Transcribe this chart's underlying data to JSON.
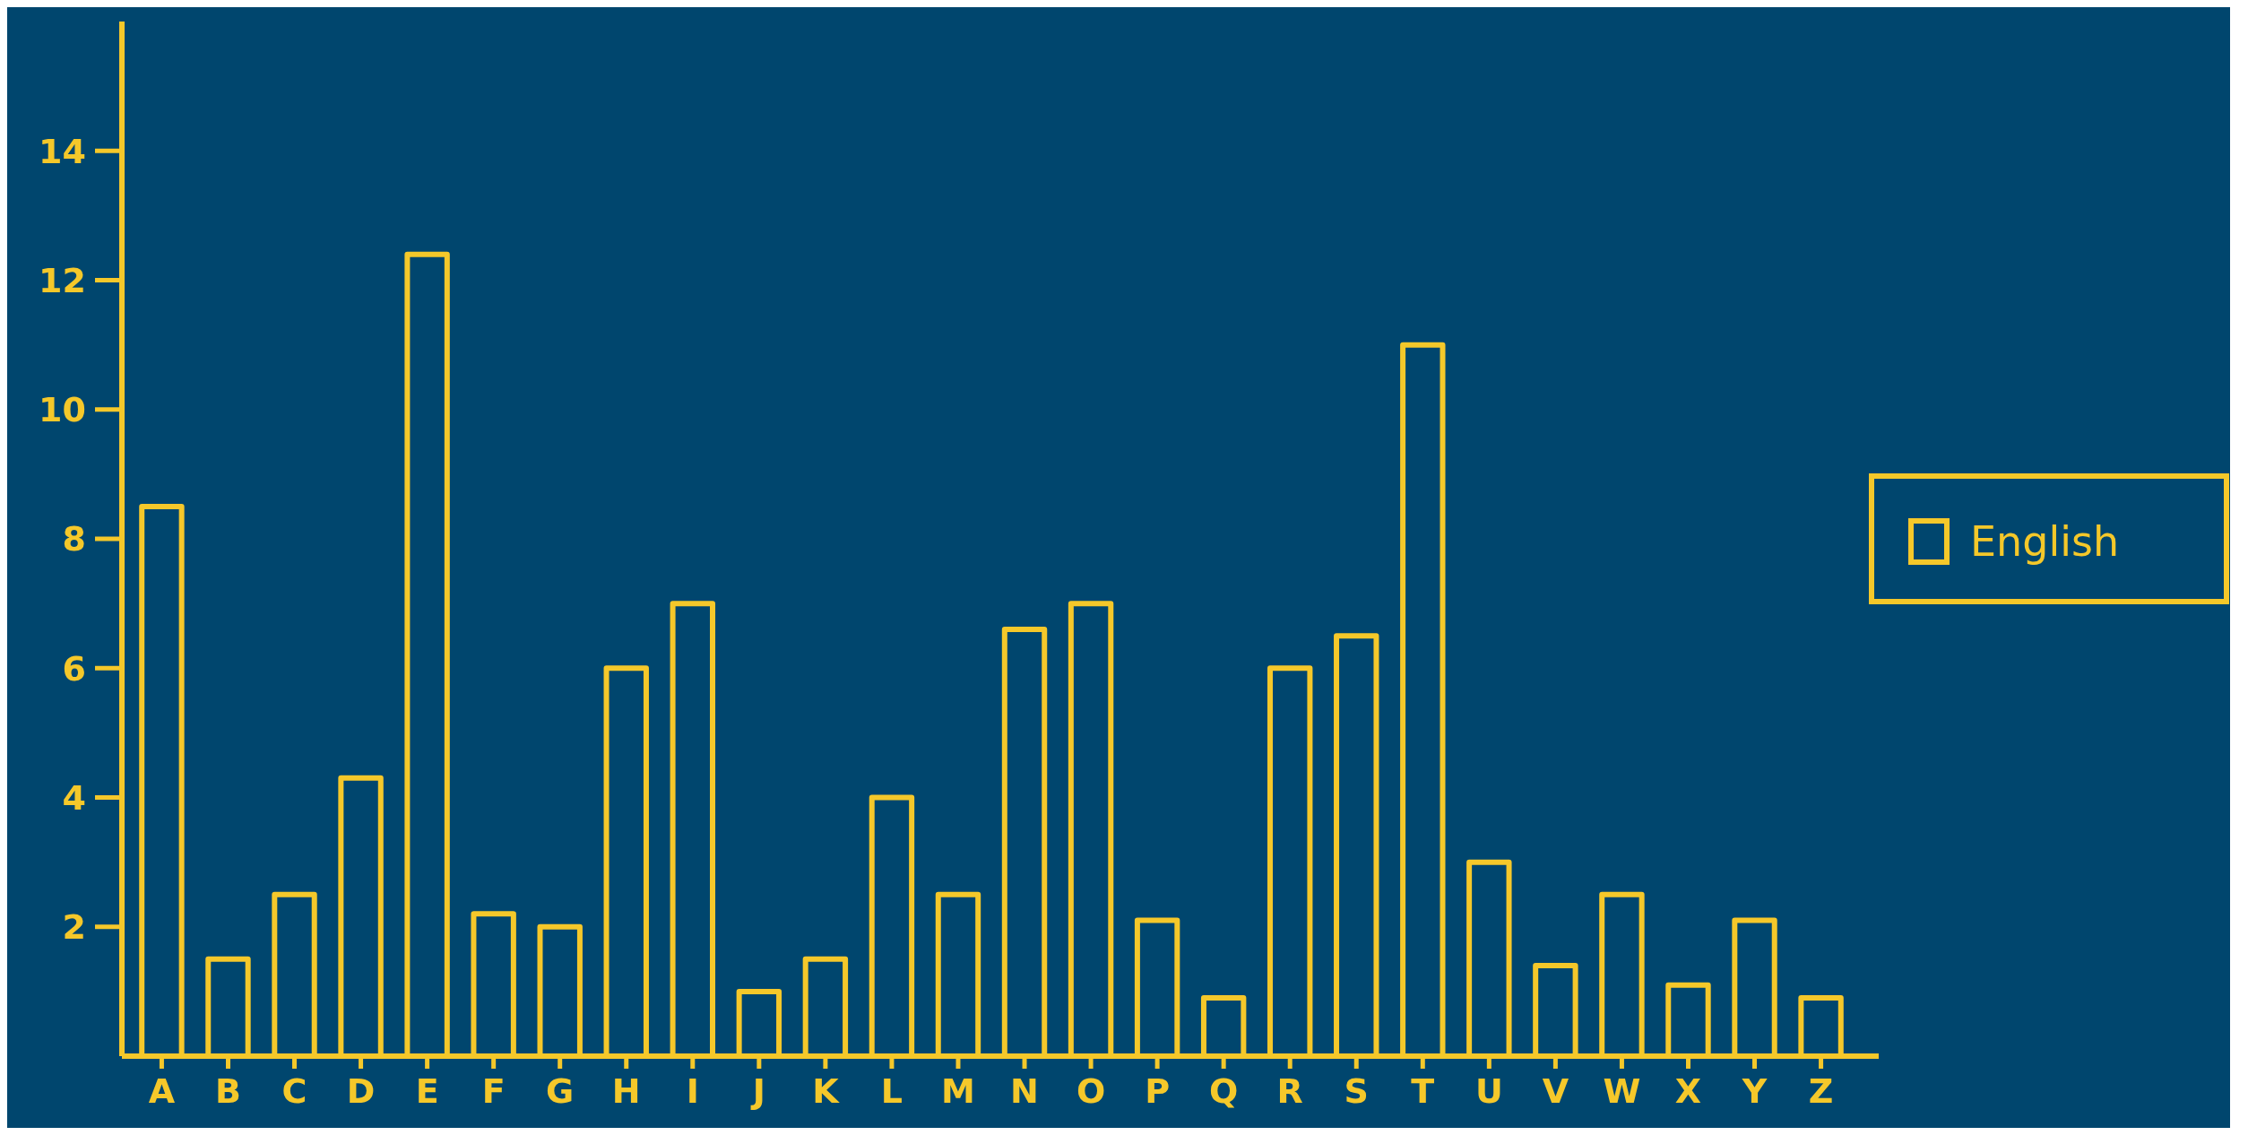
{
  "chart_data": {
    "type": "bar",
    "categories": [
      "A",
      "B",
      "C",
      "D",
      "E",
      "F",
      "G",
      "H",
      "I",
      "J",
      "K",
      "L",
      "M",
      "N",
      "O",
      "P",
      "Q",
      "R",
      "S",
      "T",
      "U",
      "V",
      "W",
      "X",
      "Y",
      "Z"
    ],
    "series": [
      {
        "name": "English",
        "color": "#f5c82a",
        "values": [
          8.5,
          1.5,
          2.5,
          4.3,
          12.4,
          2.2,
          2.0,
          6.0,
          7.0,
          1.0,
          1.5,
          4.0,
          2.5,
          6.6,
          7.0,
          2.1,
          0.9,
          6.0,
          6.5,
          11.0,
          3.0,
          1.4,
          2.5,
          1.1,
          2.1,
          0.9
        ]
      }
    ],
    "ylim": [
      0,
      16
    ],
    "yticks": [
      2,
      4,
      6,
      8,
      10,
      12,
      14
    ],
    "grid": false,
    "legend": "right"
  }
}
